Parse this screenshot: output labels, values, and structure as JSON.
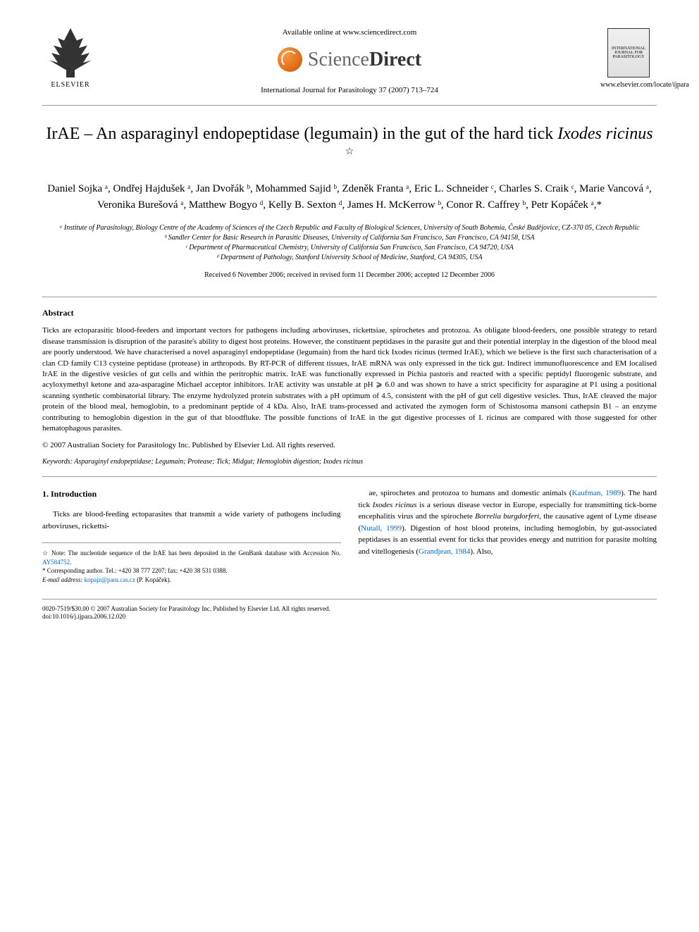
{
  "header": {
    "available_online": "Available online at www.sciencedirect.com",
    "sciencedirect_brand_1": "Science",
    "sciencedirect_brand_2": "Direct",
    "elsevier_label": "ELSEVIER",
    "journal_citation": "International Journal for Parasitology 37 (2007) 713–724",
    "journal_url": "www.elsevier.com/locate/ijpara",
    "journal_emblem_text_1": "INTERNATIONAL",
    "journal_emblem_text_2": "JOURNAL FOR",
    "journal_emblem_text_3": "PARASITOLOGY"
  },
  "title": {
    "main": "IrAE – An asparaginyl endopeptidase (legumain) in the gut of the hard tick ",
    "italic": "Ixodes ricinus",
    "star": "☆"
  },
  "authors": "Daniel Sojka ᵃ, Ondřej Hajdušek ᵃ, Jan Dvořák ᵇ, Mohammed Sajid ᵇ, Zdeněk Franta ᵃ, Eric L. Schneider ᶜ, Charles S. Craik ᶜ, Marie Vancová ᵃ, Veronika Burešová ᵃ, Matthew Bogyo ᵈ, Kelly B. Sexton ᵈ, James H. McKerrow ᵇ, Conor R. Caffrey ᵇ, Petr Kopáček ᵃ,*",
  "affiliations": {
    "a": "ᵃ Institute of Parasitology, Biology Centre of the Academy of Sciences of the Czech Republic and Faculty of Biological Sciences, University of South Bohemia, České Budějovice, CZ-370 05, Czech Republic",
    "b": "ᵇ Sandler Center for Basic Research in Parasitic Diseases, University of California San Francisco, San Francisco, CA 94158, USA",
    "c": "ᶜ Department of Pharmaceutical Chemistry, University of California San Francisco, San Francisco, CA 94720, USA",
    "d": "ᵈ Department of Pathology, Stanford University School of Medicine, Stanford, CA 94305, USA"
  },
  "dates": "Received 6 November 2006; received in revised form 11 December 2006; accepted 12 December 2006",
  "abstract": {
    "heading": "Abstract",
    "text": "Ticks are ectoparasitic blood-feeders and important vectors for pathogens including arboviruses, rickettsiae, spirochetes and protozoa. As obligate blood-feeders, one possible strategy to retard disease transmission is disruption of the parasite's ability to digest host proteins. However, the constituent peptidases in the parasite gut and their potential interplay in the digestion of the blood meal are poorly understood. We have characterised a novel asparaginyl endopeptidase (legumain) from the hard tick Ixodes ricinus (termed IrAE), which we believe is the first such characterisation of a clan CD family C13 cysteine peptidase (protease) in arthropods. By RT-PCR of different tissues, IrAE mRNA was only expressed in the tick gut. Indirect immunofluorescence and EM localised IrAE in the digestive vesicles of gut cells and within the peritrophic matrix. IrAE was functionally expressed in Pichia pastoris and reacted with a specific peptidyl fluorogenic substrate, and acyloxymethyl ketone and aza-asparagine Michael acceptor inhibitors. IrAE activity was unstable at pH ⩾ 6.0 and was shown to have a strict specificity for asparagine at P1 using a positional scanning synthetic combinatorial library. The enzyme hydrolyzed protein substrates with a pH optimum of 4.5, consistent with the pH of gut cell digestive vesicles. Thus, IrAE cleaved the major protein of the blood meal, hemoglobin, to a predominant peptide of 4 kDa. Also, IrAE trans-processed and activated the zymogen form of Schistosoma mansoni cathepsin B1 – an enzyme contributing to hemoglobin digestion in the gut of that bloodfluke. The possible functions of IrAE in the gut digestive processes of I. ricinus are compared with those suggested for other hematophagous parasites.",
    "copyright": "© 2007 Australian Society for Parasitology Inc. Published by Elsevier Ltd. All rights reserved."
  },
  "keywords": {
    "label": "Keywords:",
    "text": " Asparaginyl endopeptidase; Legumain; Protease; Tick; Midgut; Hemoglobin digestion; Ixodes ricinus"
  },
  "introduction": {
    "heading": "1. Introduction",
    "col1": "Ticks are blood-feeding ectoparasites that transmit a wide variety of pathogens including arboviruses, rickettsi-",
    "col2_part1": "ae, spirochetes and protozoa to humans and domestic animals (",
    "col2_ref1": "Kaufman, 1989",
    "col2_part2": "). The hard tick ",
    "col2_italic1": "Ixodes ricinus",
    "col2_part3": " is a serious disease vector in Europe, especially for transmitting tick-borne encephalitis virus and the spirochete ",
    "col2_italic2": "Borrelia burgdorferi",
    "col2_part4": ", the causative agent of Lyme disease (",
    "col2_ref2": "Nutall, 1999",
    "col2_part5": "). Digestion of host blood proteins, including hemoglobin, by gut-associated peptidases is an essential event for ticks that provides energy and nutrition for parasite molting and vitellogenesis (",
    "col2_ref3": "Grandjean, 1984",
    "col2_part6": "). Also,"
  },
  "footnotes": {
    "note_star": "☆ Note: The nucleotide sequence of the IrAE has been deposited in the GenBank database with Accession No. ",
    "note_accession": "AY584752",
    "note_period": ".",
    "corresponding": "* Corresponding author. Tel.: +420 38 777 2207; fax: +420 38 531 0388.",
    "email_label": "E-mail address:",
    "email": " kopajz@paru.cas.cz",
    "email_name": " (P. Kopáček)."
  },
  "footer": {
    "issn": "0020-7519/$30.00 © 2007 Australian Society for Parasitology Inc. Published by Elsevier Ltd. All rights reserved.",
    "doi": "doi:10.1016/j.ijpara.2006.12.020"
  },
  "colors": {
    "text": "#000000",
    "link": "#0066cc",
    "divider": "#999999",
    "sd_orange": "#cc5500",
    "background": "#ffffff"
  },
  "typography": {
    "title_fontsize": 24,
    "author_fontsize": 15,
    "affiliation_fontsize": 10,
    "abstract_fontsize": 11,
    "body_fontsize": 11,
    "footnote_fontsize": 9
  }
}
